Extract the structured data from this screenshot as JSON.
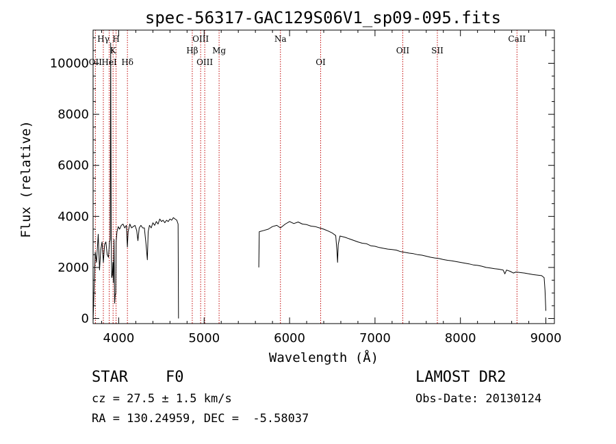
{
  "chart_data": {
    "type": "line",
    "title": "spec-56317-GAC129S06V1_sp09-095.fits",
    "xlabel": "Wavelength (Å)",
    "ylabel": "Flux (relative)",
    "xlim": [
      3700,
      9100
    ],
    "ylim": [
      -200,
      11300
    ],
    "x_ticks": [
      4000,
      5000,
      6000,
      7000,
      8000,
      9000
    ],
    "y_ticks": [
      0,
      2000,
      4000,
      6000,
      8000,
      10000
    ],
    "grid": false,
    "line_color": "#000000",
    "marker_color": "#c00000",
    "spectral_lines": [
      {
        "label": "OII",
        "wavelength": 3727,
        "row": 3
      },
      {
        "label": "Hγ",
        "wavelength": 3820,
        "row": 1
      },
      {
        "label": "HeI",
        "wavelength": 3889,
        "row": 3
      },
      {
        "label": "K",
        "wavelength": 3934,
        "row": 2
      },
      {
        "label": "H",
        "wavelength": 3969,
        "row": 1
      },
      {
        "label": "Hδ",
        "wavelength": 4102,
        "row": 3
      },
      {
        "label": "Hβ",
        "wavelength": 4861,
        "row": 2
      },
      {
        "label": "OIII",
        "wavelength": 4959,
        "row": 1
      },
      {
        "label": "OIII",
        "wavelength": 5007,
        "row": 3
      },
      {
        "label": "Mg",
        "wavelength": 5175,
        "row": 2
      },
      {
        "label": "Na",
        "wavelength": 5893,
        "row": 1
      },
      {
        "label": "OI",
        "wavelength": 6364,
        "row": 3
      },
      {
        "label": "OII",
        "wavelength": 7325,
        "row": 2
      },
      {
        "label": "SII",
        "wavelength": 7730,
        "row": 2
      },
      {
        "label": "CaII",
        "wavelength": 8662,
        "row": 1
      }
    ],
    "series": [
      {
        "segments": [
          [
            [
              3700,
              -100
            ],
            [
              3712,
              1200
            ],
            [
              3725,
              2600
            ],
            [
              3740,
              2200
            ],
            [
              3760,
              3300
            ],
            [
              3775,
              1900
            ],
            [
              3790,
              2700
            ],
            [
              3805,
              3000
            ],
            [
              3820,
              2200
            ],
            [
              3835,
              2900
            ],
            [
              3850,
              3000
            ],
            [
              3865,
              2500
            ],
            [
              3880,
              2400
            ],
            [
              3892,
              3000
            ],
            [
              3900,
              3100
            ],
            [
              3906,
              10800
            ],
            [
              3912,
              3000
            ],
            [
              3918,
              1600
            ],
            [
              3925,
              1700
            ],
            [
              3932,
              2200
            ],
            [
              3938,
              1400
            ],
            [
              3945,
              3100
            ],
            [
              3952,
              600
            ],
            [
              3958,
              900
            ],
            [
              3965,
              1000
            ],
            [
              3970,
              3000
            ],
            [
              3980,
              3400
            ],
            [
              3995,
              3600
            ],
            [
              4010,
              3500
            ],
            [
              4030,
              3650
            ],
            [
              4050,
              3700
            ],
            [
              4070,
              3550
            ],
            [
              4090,
              3650
            ],
            [
              4101,
              2800
            ],
            [
              4110,
              3400
            ],
            [
              4130,
              3700
            ],
            [
              4150,
              3550
            ],
            [
              4170,
              3600
            ],
            [
              4190,
              3650
            ],
            [
              4210,
              3450
            ],
            [
              4225,
              3050
            ],
            [
              4240,
              3550
            ],
            [
              4260,
              3650
            ],
            [
              4280,
              3550
            ],
            [
              4300,
              3550
            ],
            [
              4320,
              2900
            ],
            [
              4335,
              2300
            ],
            [
              4345,
              3400
            ],
            [
              4360,
              3650
            ],
            [
              4380,
              3550
            ],
            [
              4400,
              3750
            ],
            [
              4420,
              3650
            ],
            [
              4440,
              3800
            ],
            [
              4460,
              3700
            ],
            [
              4480,
              3900
            ],
            [
              4500,
              3800
            ],
            [
              4520,
              3850
            ],
            [
              4540,
              3750
            ],
            [
              4560,
              3850
            ],
            [
              4580,
              3800
            ],
            [
              4600,
              3900
            ],
            [
              4620,
              3850
            ],
            [
              4640,
              3950
            ],
            [
              4660,
              3900
            ],
            [
              4680,
              3850
            ],
            [
              4695,
              3700
            ],
            [
              4700,
              0
            ]
          ],
          [
            [
              5640,
              2000
            ],
            [
              5645,
              3400
            ],
            [
              5700,
              3450
            ],
            [
              5750,
              3500
            ],
            [
              5800,
              3600
            ],
            [
              5850,
              3650
            ],
            [
              5893,
              3550
            ],
            [
              5950,
              3700
            ],
            [
              6000,
              3800
            ],
            [
              6050,
              3720
            ],
            [
              6100,
              3780
            ],
            [
              6150,
              3700
            ],
            [
              6200,
              3680
            ],
            [
              6250,
              3620
            ],
            [
              6300,
              3600
            ],
            [
              6350,
              3550
            ],
            [
              6400,
              3500
            ],
            [
              6450,
              3430
            ],
            [
              6500,
              3350
            ],
            [
              6540,
              3250
            ],
            [
              6555,
              2650
            ],
            [
              6562,
              2200
            ],
            [
              6570,
              2900
            ],
            [
              6590,
              3230
            ],
            [
              6650,
              3180
            ],
            [
              6700,
              3120
            ],
            [
              6750,
              3060
            ],
            [
              6800,
              3000
            ],
            [
              6850,
              2950
            ],
            [
              6900,
              2930
            ],
            [
              6950,
              2850
            ],
            [
              7000,
              2830
            ],
            [
              7050,
              2780
            ],
            [
              7100,
              2750
            ],
            [
              7150,
              2720
            ],
            [
              7200,
              2700
            ],
            [
              7250,
              2680
            ],
            [
              7300,
              2620
            ],
            [
              7350,
              2590
            ],
            [
              7400,
              2560
            ],
            [
              7450,
              2540
            ],
            [
              7500,
              2500
            ],
            [
              7550,
              2480
            ],
            [
              7600,
              2440
            ],
            [
              7650,
              2400
            ],
            [
              7700,
              2370
            ],
            [
              7750,
              2350
            ],
            [
              7800,
              2310
            ],
            [
              7850,
              2280
            ],
            [
              7900,
              2260
            ],
            [
              7950,
              2230
            ],
            [
              8000,
              2200
            ],
            [
              8050,
              2170
            ],
            [
              8100,
              2140
            ],
            [
              8150,
              2100
            ],
            [
              8200,
              2080
            ],
            [
              8250,
              2050
            ],
            [
              8300,
              2000
            ],
            [
              8350,
              1980
            ],
            [
              8400,
              1950
            ],
            [
              8450,
              1930
            ],
            [
              8500,
              1900
            ],
            [
              8520,
              1750
            ],
            [
              8540,
              1900
            ],
            [
              8580,
              1850
            ],
            [
              8620,
              1780
            ],
            [
              8650,
              1820
            ],
            [
              8700,
              1800
            ],
            [
              8750,
              1780
            ],
            [
              8800,
              1750
            ],
            [
              8850,
              1720
            ],
            [
              8900,
              1700
            ],
            [
              8950,
              1680
            ],
            [
              8980,
              1600
            ],
            [
              8990,
              1100
            ],
            [
              9000,
              300
            ]
          ]
        ]
      }
    ]
  },
  "info": {
    "object_class": "STAR",
    "subclass": "F0",
    "redshift_text": "cz = 27.5 ± 1.5 km/s",
    "coords_text": "RA = 130.24959, DEC =  -5.58037",
    "survey": "LAMOST DR2",
    "obs_date": "Obs-Date: 20130124"
  }
}
